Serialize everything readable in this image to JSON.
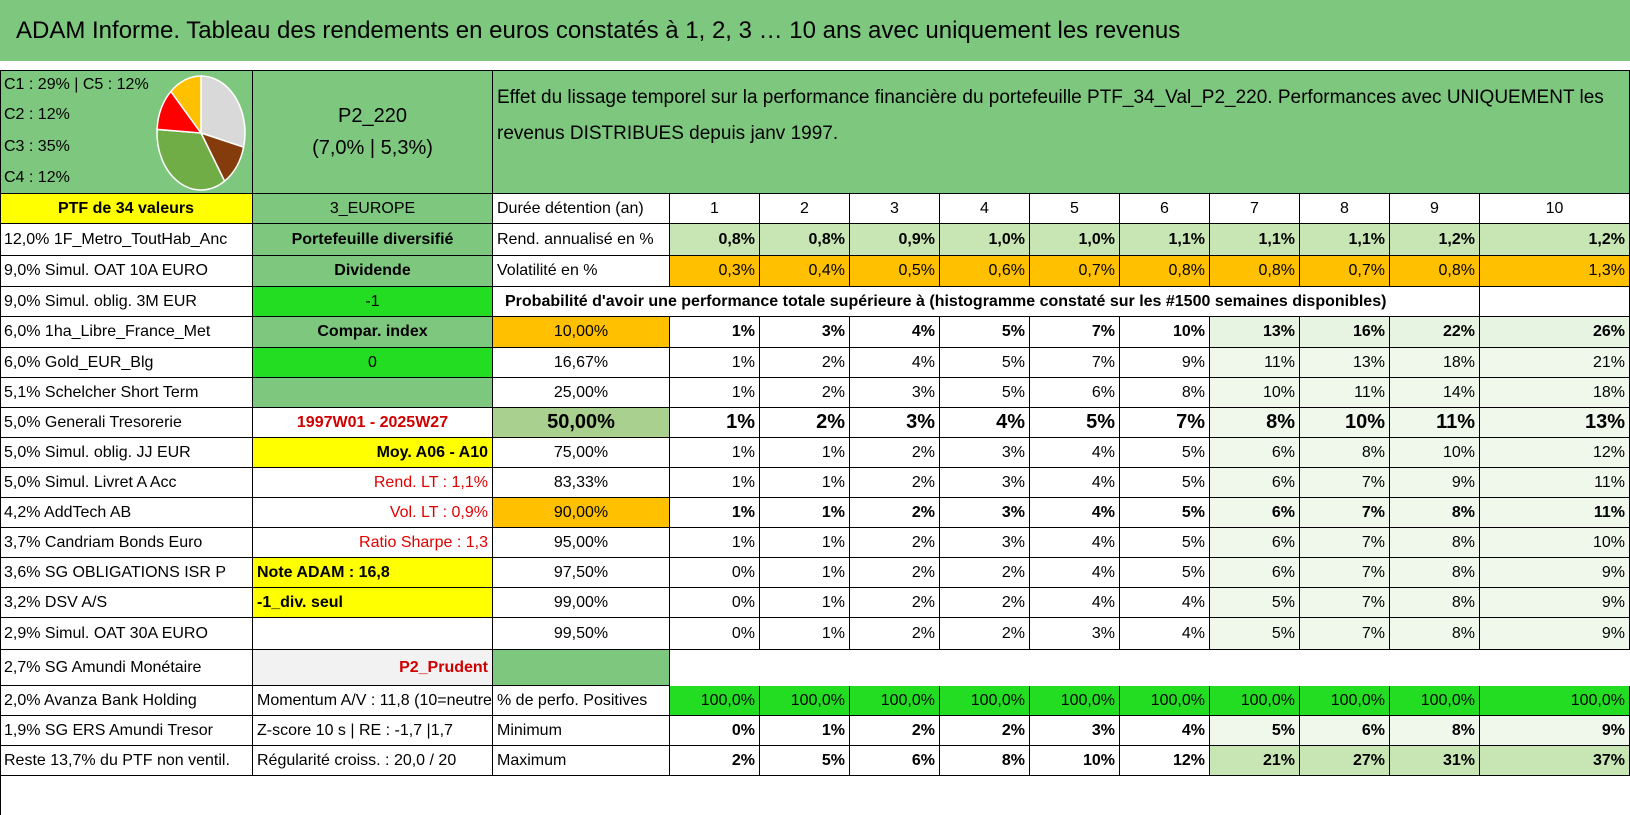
{
  "title": "ADAM Informe. Tableau des rendements en euros constatés à 1, 2, 3 … 10 ans avec uniquement les revenus",
  "mix": {
    "lines": [
      "C1 : 29% | C5 : 12%",
      "C2 : 12%",
      "C3 : 35%",
      "C4 : 12%"
    ],
    "pie": [
      {
        "label": "C1",
        "value": 29,
        "color": "#d9d9d9"
      },
      {
        "label": "C2",
        "value": 12,
        "color": "#843c0c"
      },
      {
        "label": "C3",
        "value": 35,
        "color": "#70ad47"
      },
      {
        "label": "C4",
        "value": 12,
        "color": "#ff0000"
      },
      {
        "label": "C5",
        "value": 12,
        "color": "#ffc000"
      }
    ]
  },
  "portfolio": {
    "code": "P2_220",
    "ratios": "(7,0% | 5,3%)"
  },
  "description": "Effet du lissage temporel sur la performance financière du portefeuille PTF_34_Val_P2_220. Performances avec UNIQUEMENT les revenus DISTRIBUES depuis janv 1997.",
  "col_a": [
    "PTF de 34 valeurs",
    "12,0% 1F_Metro_ToutHab_Anc",
    "9,0% Simul. OAT 10A EURO",
    "9,0% Simul. oblig. 3M EUR",
    "6,0% 1ha_Libre_France_Met",
    "6,0% Gold_EUR_Blg",
    "5,1% Schelcher Short Term",
    "5,0% Generali Tresorerie",
    "5,0% Simul. oblig. JJ EUR",
    "5,0% Simul. Livret A Acc",
    "4,2% AddTech AB",
    "3,7% Candriam Bonds Euro",
    "3,6% SG OBLIGATIONS ISR P",
    "3,2% DSV A/S",
    "2,9% Simul. OAT 30A EURO",
    "2,7% SG Amundi Monétaire",
    "2,0% Avanza Bank Holding",
    "1,9% SG ERS Amundi Tresor",
    "Reste 13,7% du PTF non ventil."
  ],
  "col_b": [
    "3_EUROPE",
    "Portefeuille diversifié",
    "Dividende",
    "-1",
    "Compar. index",
    "0",
    "",
    "1997W01 - 2025W27",
    "Moy. A06 - A10",
    "Rend. LT : 1,1%",
    "Vol. LT : 0,9%",
    "Ratio Sharpe : 1,3",
    "Note ADAM : 16,8",
    "-1_div. seul",
    "",
    "P2_Prudent",
    "Momentum A/V : 11,8 (10=neutre)",
    "Z-score 10 s | RE : -1,7 |1,7",
    "Régularité croiss. : 20,0 / 20"
  ],
  "header": {
    "label": "Durée détention (an)",
    "years": [
      "1",
      "2",
      "3",
      "4",
      "5",
      "6",
      "7",
      "8",
      "9",
      "10"
    ]
  },
  "rend": {
    "label": "Rend. annualisé en %",
    "values": [
      "0,8%",
      "0,8%",
      "0,9%",
      "1,0%",
      "1,0%",
      "1,1%",
      "1,1%",
      "1,1%",
      "1,2%",
      "1,2%"
    ]
  },
  "vol": {
    "label": "Volatilité en %",
    "values": [
      "0,3%",
      "0,4%",
      "0,5%",
      "0,6%",
      "0,7%",
      "0,8%",
      "0,8%",
      "0,7%",
      "0,8%",
      "1,3%"
    ]
  },
  "prob_label": "Probabilité d'avoir une performance totale supérieure à (histogramme constaté sur les #1500 semaines disponibles)",
  "prob_rows": [
    {
      "p": "10,00%",
      "v": [
        "1%",
        "3%",
        "4%",
        "5%",
        "7%",
        "10%",
        "13%",
        "16%",
        "22%",
        "26%"
      ]
    },
    {
      "p": "16,67%",
      "v": [
        "1%",
        "2%",
        "4%",
        "5%",
        "7%",
        "9%",
        "11%",
        "13%",
        "18%",
        "21%"
      ]
    },
    {
      "p": "25,00%",
      "v": [
        "1%",
        "2%",
        "3%",
        "5%",
        "6%",
        "8%",
        "10%",
        "11%",
        "14%",
        "18%"
      ]
    },
    {
      "p": "50,00%",
      "v": [
        "1%",
        "2%",
        "3%",
        "4%",
        "5%",
        "7%",
        "8%",
        "10%",
        "11%",
        "13%"
      ]
    },
    {
      "p": "75,00%",
      "v": [
        "1%",
        "1%",
        "2%",
        "3%",
        "4%",
        "5%",
        "6%",
        "8%",
        "10%",
        "12%"
      ]
    },
    {
      "p": "83,33%",
      "v": [
        "1%",
        "1%",
        "2%",
        "3%",
        "4%",
        "5%",
        "6%",
        "7%",
        "9%",
        "11%"
      ]
    },
    {
      "p": "90,00%",
      "v": [
        "1%",
        "1%",
        "2%",
        "3%",
        "4%",
        "5%",
        "6%",
        "7%",
        "8%",
        "11%"
      ]
    },
    {
      "p": "95,00%",
      "v": [
        "1%",
        "1%",
        "2%",
        "3%",
        "4%",
        "5%",
        "6%",
        "7%",
        "8%",
        "10%"
      ]
    },
    {
      "p": "97,50%",
      "v": [
        "0%",
        "1%",
        "2%",
        "2%",
        "4%",
        "5%",
        "6%",
        "7%",
        "8%",
        "9%"
      ]
    },
    {
      "p": "99,00%",
      "v": [
        "0%",
        "1%",
        "2%",
        "2%",
        "4%",
        "4%",
        "5%",
        "7%",
        "8%",
        "9%"
      ]
    },
    {
      "p": "99,50%",
      "v": [
        "0%",
        "1%",
        "2%",
        "2%",
        "3%",
        "4%",
        "5%",
        "7%",
        "8%",
        "9%"
      ]
    }
  ],
  "positive": {
    "label": "% de perfo. Positives",
    "values": [
      "100,0%",
      "100,0%",
      "100,0%",
      "100,0%",
      "100,0%",
      "100,0%",
      "100,0%",
      "100,0%",
      "100,0%",
      "100,0%"
    ]
  },
  "minimum": {
    "label": "Minimum",
    "values": [
      "0%",
      "1%",
      "2%",
      "2%",
      "3%",
      "4%",
      "5%",
      "6%",
      "8%",
      "9%"
    ]
  },
  "maximum": {
    "label": "Maximum",
    "values": [
      "2%",
      "5%",
      "6%",
      "8%",
      "10%",
      "12%",
      "21%",
      "27%",
      "31%",
      "37%"
    ]
  },
  "colors": {
    "header_green": "#7ec77e",
    "yellow": "#ffff00",
    "bright_green": "#22dd22",
    "orange": "#ffc000",
    "light_green": "#c8e6b4",
    "red": "#e00000"
  }
}
